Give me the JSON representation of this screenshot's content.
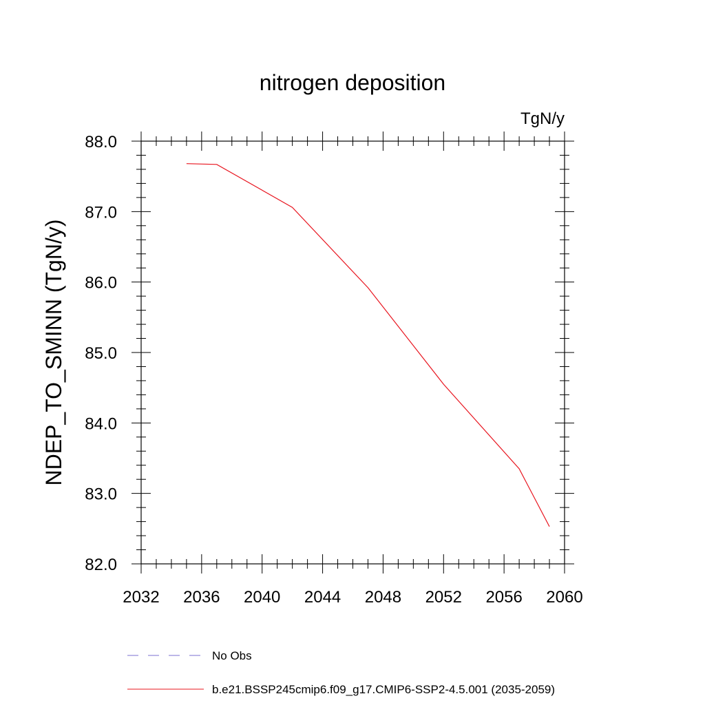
{
  "chart_data": {
    "type": "line",
    "title": "nitrogen deposition",
    "units": "TgN/y",
    "ylabel": "NDEP_TO_SMINN  (TgN/y)",
    "xlabel": "",
    "xlim": [
      2032,
      2060
    ],
    "ylim": [
      82.0,
      88.0
    ],
    "xticks": [
      "2032",
      "2036",
      "2040",
      "2044",
      "2048",
      "2052",
      "2056",
      "2060"
    ],
    "yticks": [
      "82.0",
      "83.0",
      "84.0",
      "85.0",
      "86.0",
      "87.0",
      "88.0"
    ],
    "grid": false,
    "legend_position": "bottom",
    "legend": [
      {
        "label": "No Obs",
        "color": "#7b6fd0",
        "style": "dashed"
      },
      {
        "label": "b.e21.BSSP245cmip6.f09_g17.CMIP6-SSP2-4.5.001 (2035-2059)",
        "color": "#e8141e",
        "style": "solid"
      }
    ],
    "series": [
      {
        "name": "b.e21.BSSP245cmip6.f09_g17.CMIP6-SSP2-4.5.001 (2035-2059)",
        "color": "#e8141e",
        "x": [
          2035,
          2037,
          2042,
          2047,
          2052,
          2057,
          2059
        ],
        "y": [
          87.68,
          87.67,
          87.06,
          85.92,
          84.55,
          83.35,
          82.53
        ]
      }
    ]
  }
}
